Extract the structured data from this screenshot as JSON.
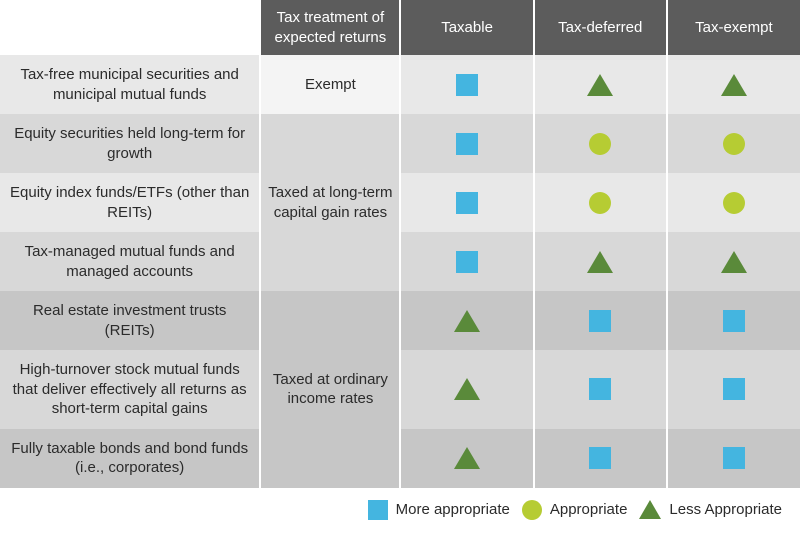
{
  "colors": {
    "header_bg": "#5c5c5c",
    "header_text": "#ffffff",
    "body_text": "#2b2b2b",
    "row_light": "#e8e8e8",
    "row_med": "#d8d8d8",
    "row_dark": "#c6c6c6",
    "square": "#44b5e0",
    "circle": "#b6cc33",
    "triangle": "#5a8a3a"
  },
  "headers": {
    "treatment": "Tax treatment of expected returns",
    "taxable": "Taxable",
    "deferred": "Tax-deferred",
    "exempt": "Tax-exempt"
  },
  "treatments": {
    "exempt": "Exempt",
    "ltcg": "Taxed at long-term capital gain rates",
    "ordinary": "Taxed at ordinary income rates"
  },
  "rows": [
    {
      "label": "Tax-free municipal securities and municipal mutual funds",
      "treatment_key": "exempt",
      "bg": "#e8e8e8",
      "cells": [
        "square",
        "triangle",
        "triangle"
      ]
    },
    {
      "label": "Equity securities held long-term for growth",
      "treatment_key": "ltcg",
      "bg": "#d8d8d8",
      "cells": [
        "square",
        "circle",
        "circle"
      ]
    },
    {
      "label": "Equity index funds/ETFs (other than REITs)",
      "treatment_key": "ltcg",
      "bg": "#e8e8e8",
      "cells": [
        "square",
        "circle",
        "circle"
      ]
    },
    {
      "label": "Tax-managed mutual funds and managed accounts",
      "treatment_key": "ltcg",
      "bg": "#d8d8d8",
      "cells": [
        "square",
        "triangle",
        "triangle"
      ]
    },
    {
      "label": "Real estate investment trusts (REITs)",
      "treatment_key": "ordinary",
      "bg": "#c6c6c6",
      "cells": [
        "triangle",
        "square",
        "square"
      ]
    },
    {
      "label": "High-turnover stock mutual funds that deliver effectively all returns as short-term capital gains",
      "treatment_key": "ordinary",
      "bg": "#d8d8d8",
      "cells": [
        "triangle",
        "square",
        "square"
      ]
    },
    {
      "label": "Fully taxable bonds and bond funds (i.e., corporates)",
      "treatment_key": "ordinary",
      "bg": "#c6c6c6",
      "cells": [
        "triangle",
        "square",
        "square"
      ]
    }
  ],
  "treatment_spans": [
    {
      "key": "exempt",
      "start": 0,
      "span": 1,
      "bg": "#f4f4f4"
    },
    {
      "key": "ltcg",
      "start": 1,
      "span": 3,
      "bg": "#d8d8d8"
    },
    {
      "key": "ordinary",
      "start": 4,
      "span": 3,
      "bg": "#c6c6c6"
    }
  ],
  "legend": {
    "square": "More appropriate",
    "circle": "Appropriate",
    "triangle": "Less Appropriate"
  }
}
